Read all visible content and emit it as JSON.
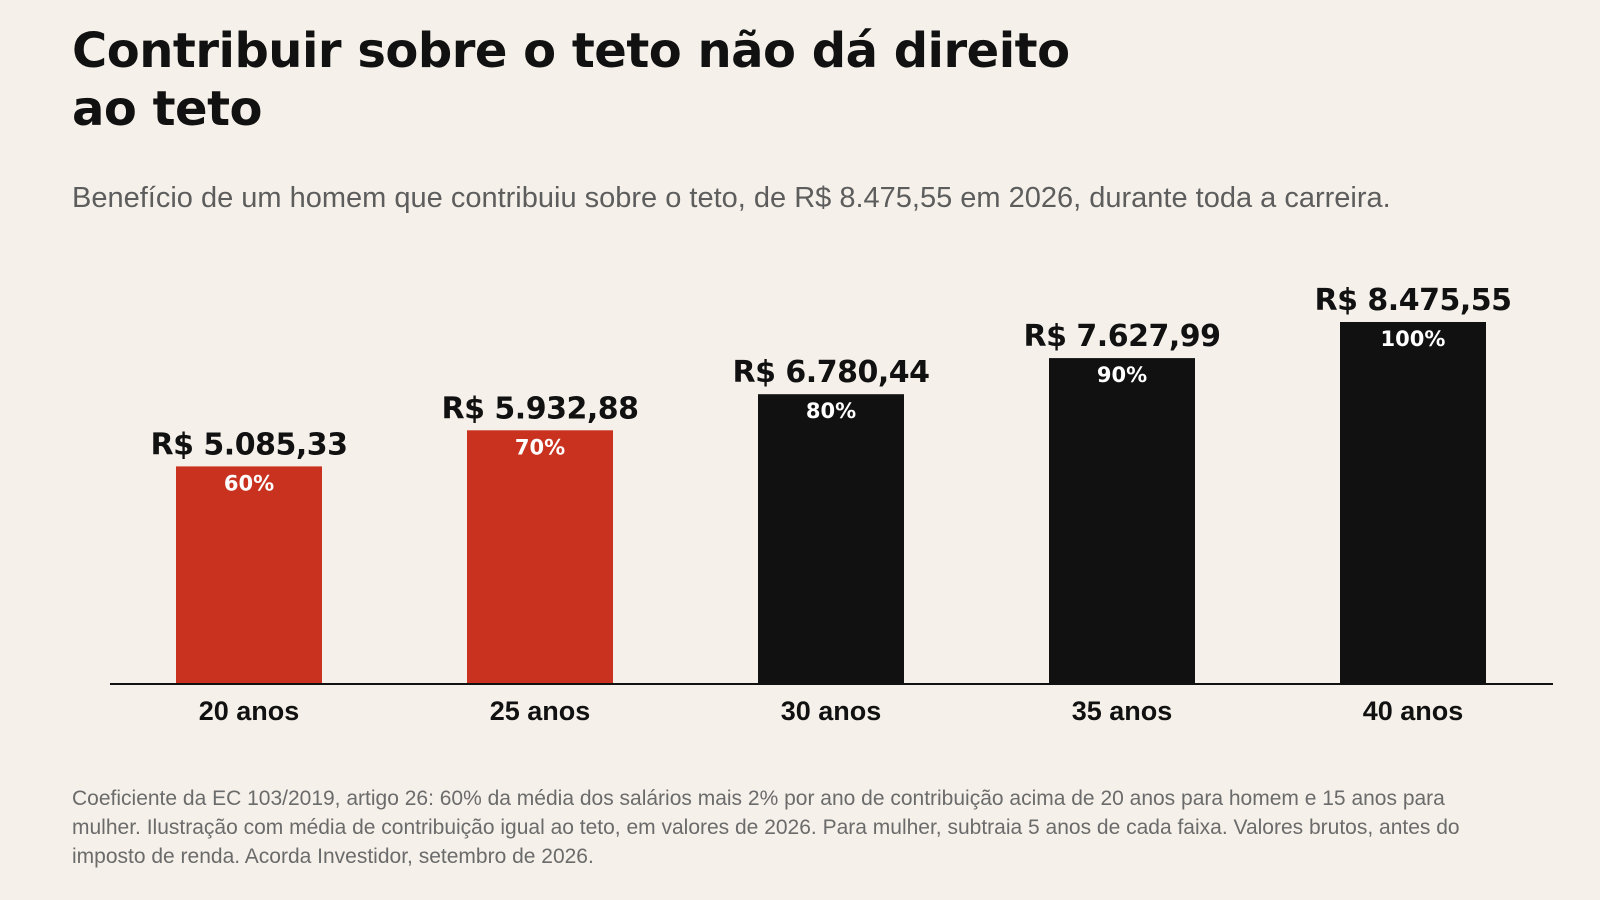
{
  "title": "Contribuir sobre o teto não dá direito ao teto",
  "subtitle": "Benefício de um homem que contribuiu sobre o teto, de R$ 8.475,55 em 2026, durante toda a carreira.",
  "footnote": "Coeficiente da EC 103/2019, artigo 26: 60% da média dos salários mais 2% por ano de contribuição acima de 20 anos para homem e 15 anos para mulher. Ilustração com média de contribuição igual ao teto, em valores de 2026. Para mulher, subtraia 5 anos de cada faixa. Valores brutos, antes do imposto de renda. Acorda Investidor, setembro de 2026.",
  "colors": {
    "background": "#f5f1ea",
    "highlight": "#c8321f",
    "default": "#111111",
    "bar_label": "#ffffff"
  },
  "chart_data": {
    "type": "bar",
    "categories": [
      "20 anos",
      "25 anos",
      "30 anos",
      "35 anos",
      "40 anos"
    ],
    "values": [
      5085.33,
      5932.88,
      6780.44,
      7627.99,
      8475.55
    ],
    "value_labels": [
      "R$ 5.085,33",
      "R$ 5.932,88",
      "R$ 6.780,44",
      "R$ 7.627,99",
      "R$ 8.475,55"
    ],
    "percent_labels": [
      "60%",
      "70%",
      "80%",
      "90%",
      "100%"
    ],
    "highlighted": [
      true,
      true,
      false,
      false,
      false
    ],
    "ylim": [
      0,
      8475.55
    ],
    "grid": false,
    "legend": false
  }
}
